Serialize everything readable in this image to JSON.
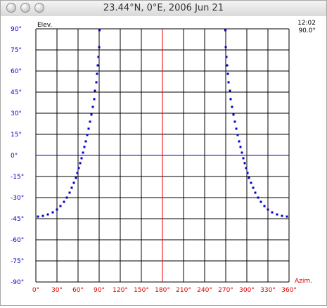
{
  "window": {
    "title": "23.44°N, 0°E, 2006 Jun 21"
  },
  "readout": {
    "time": "12:02",
    "elevation": "90.0°"
  },
  "colors": {
    "y_tick_labels": "#0000cc",
    "x_tick_labels": "#dd0000",
    "grid": "#000000",
    "horizon_line": "#0000cc",
    "meridian_line": "#dd0000",
    "sun_path": "#0000cc"
  },
  "chart_data": {
    "type": "scatter",
    "xlabel": "Azim.",
    "ylabel": "Elev.",
    "xlim": [
      0,
      360
    ],
    "ylim": [
      -90,
      90
    ],
    "x_ticks": [
      "0°",
      "30°",
      "60°",
      "90°",
      "120°",
      "150°",
      "180°",
      "210°",
      "240°",
      "270°",
      "300°",
      "330°",
      "360°"
    ],
    "y_ticks": [
      "90°",
      "75°",
      "60°",
      "45°",
      "30°",
      "15°",
      "0°",
      "-15°",
      "-30°",
      "-45°",
      "-60°",
      "-75°",
      "-90°"
    ],
    "grid": true,
    "reference_lines": {
      "horizon_elevation": 0,
      "meridian_azimuth": 180
    },
    "series": [
      {
        "x": [
          3,
          10,
          17,
          24,
          30,
          35,
          40,
          44,
          48,
          51,
          54,
          57,
          59,
          61,
          63,
          65,
          67,
          69,
          71,
          73,
          75,
          77,
          79,
          81,
          83,
          84,
          86,
          87,
          88,
          89,
          90,
          90.5
        ],
        "y": [
          -43.5,
          -43,
          -42,
          -40.5,
          -38.5,
          -36,
          -33,
          -30,
          -26.5,
          -23,
          -19.5,
          -16,
          -12.5,
          -9,
          -5.5,
          -2,
          2,
          6,
          10,
          14.5,
          19,
          24,
          29,
          34.5,
          40,
          46,
          52,
          58,
          64,
          70,
          77,
          89
        ]
      },
      {
        "x": [
          269.5,
          270,
          271,
          272,
          273,
          274,
          276,
          277,
          279,
          281,
          283,
          285,
          287,
          289,
          291,
          293,
          295,
          297,
          299,
          301,
          303,
          306,
          309,
          312,
          316,
          320,
          325,
          330,
          336,
          343,
          350,
          357
        ],
        "y": [
          89,
          77,
          70,
          64,
          58,
          52,
          46,
          40,
          34.5,
          29,
          24,
          19,
          14.5,
          10,
          6,
          2,
          -2,
          -5.5,
          -9,
          -12.5,
          -16,
          -19.5,
          -23,
          -26.5,
          -30,
          -33,
          -36,
          -38.5,
          -40.5,
          -42,
          -43,
          -43.5
        ]
      }
    ]
  }
}
